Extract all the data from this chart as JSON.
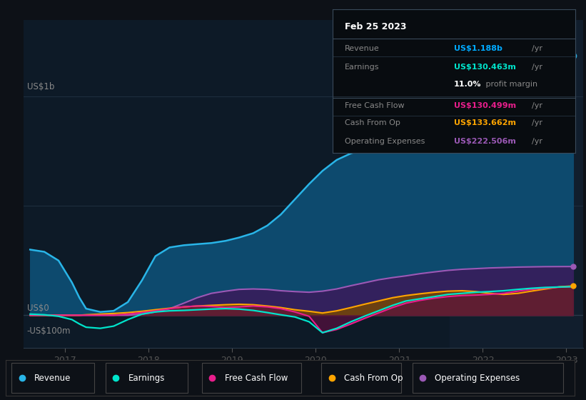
{
  "background_color": "#0d1117",
  "plot_bg_color": "#0d1a27",
  "ylim": [
    -150000000,
    1350000000
  ],
  "xlim": [
    2016.5,
    2023.2
  ],
  "x_ticks": [
    2017,
    2018,
    2019,
    2020,
    2021,
    2022,
    2023
  ],
  "y_label_1b": "US$1b",
  "y_label_0": "US$0",
  "y_label_neg": "-US$100m",
  "tooltip_date": "Feb 25 2023",
  "tooltip_rows": [
    {
      "label": "Revenue",
      "value": "US$1.188b",
      "unit": "/yr",
      "color": "#00aaff",
      "extra": null
    },
    {
      "label": "Earnings",
      "value": "US$130.463m",
      "unit": "/yr",
      "color": "#00e5cc",
      "extra": "11.0% profit margin"
    },
    {
      "label": "Free Cash Flow",
      "value": "US$130.499m",
      "unit": "/yr",
      "color": "#e91e8c",
      "extra": null
    },
    {
      "label": "Cash From Op",
      "value": "US$133.662m",
      "unit": "/yr",
      "color": "#ffa500",
      "extra": null
    },
    {
      "label": "Operating Expenses",
      "value": "US$222.506m",
      "unit": "/yr",
      "color": "#9b59b6",
      "extra": null
    }
  ],
  "legend": [
    {
      "label": "Revenue",
      "color": "#29b5e8"
    },
    {
      "label": "Earnings",
      "color": "#00e5cc"
    },
    {
      "label": "Free Cash Flow",
      "color": "#e91e8c"
    },
    {
      "label": "Cash From Op",
      "color": "#ffa500"
    },
    {
      "label": "Operating Expenses",
      "color": "#9b59b6"
    }
  ],
  "revenue_line_color": "#29b5e8",
  "revenue_fill_color": "#0d4a6e",
  "earnings_line_color": "#00e5cc",
  "fcf_line_color": "#e91e8c",
  "fcf_fill_color": "#5a1040",
  "cashop_line_color": "#ffa500",
  "cashop_fill_color": "#7a4800",
  "opex_line_color": "#9b59b6",
  "opex_fill_color": "#3a1a5a",
  "highlight_start": 2021.6,
  "highlight_color": "#111e2d",
  "series_x": [
    2016.58,
    2016.75,
    2016.92,
    2017.08,
    2017.17,
    2017.25,
    2017.42,
    2017.58,
    2017.75,
    2017.92,
    2018.08,
    2018.25,
    2018.42,
    2018.58,
    2018.75,
    2018.92,
    2019.08,
    2019.25,
    2019.42,
    2019.58,
    2019.75,
    2019.92,
    2020.08,
    2020.25,
    2020.42,
    2020.58,
    2020.75,
    2020.92,
    2021.08,
    2021.25,
    2021.42,
    2021.58,
    2021.75,
    2021.92,
    2022.08,
    2022.25,
    2022.42,
    2022.58,
    2022.75,
    2022.92,
    2023.08
  ],
  "revenue": [
    300000000,
    290000000,
    250000000,
    150000000,
    80000000,
    30000000,
    15000000,
    20000000,
    60000000,
    160000000,
    270000000,
    310000000,
    320000000,
    325000000,
    330000000,
    340000000,
    355000000,
    375000000,
    410000000,
    460000000,
    530000000,
    600000000,
    660000000,
    710000000,
    740000000,
    760000000,
    790000000,
    835000000,
    880000000,
    920000000,
    960000000,
    1000000000,
    1040000000,
    1075000000,
    1100000000,
    1120000000,
    1140000000,
    1155000000,
    1168000000,
    1180000000,
    1188000000
  ],
  "earnings": [
    5000000,
    2000000,
    -5000000,
    -20000000,
    -40000000,
    -55000000,
    -60000000,
    -50000000,
    -20000000,
    5000000,
    15000000,
    20000000,
    22000000,
    25000000,
    28000000,
    30000000,
    28000000,
    22000000,
    12000000,
    2000000,
    -8000000,
    -30000000,
    -80000000,
    -60000000,
    -30000000,
    -5000000,
    20000000,
    45000000,
    65000000,
    75000000,
    85000000,
    95000000,
    100000000,
    105000000,
    108000000,
    112000000,
    118000000,
    123000000,
    127000000,
    129000000,
    130463000
  ],
  "free_cash_flow": [
    0,
    0,
    0,
    0,
    0,
    0,
    0,
    0,
    5000000,
    12000000,
    20000000,
    30000000,
    38000000,
    42000000,
    40000000,
    35000000,
    38000000,
    42000000,
    38000000,
    30000000,
    15000000,
    -5000000,
    -80000000,
    -65000000,
    -40000000,
    -15000000,
    10000000,
    35000000,
    55000000,
    68000000,
    78000000,
    85000000,
    90000000,
    92000000,
    95000000,
    100000000,
    110000000,
    118000000,
    124000000,
    128000000,
    130499000
  ],
  "cash_from_op": [
    0,
    0,
    0,
    0,
    0,
    2000000,
    5000000,
    8000000,
    12000000,
    18000000,
    25000000,
    32000000,
    38000000,
    42000000,
    45000000,
    48000000,
    50000000,
    48000000,
    42000000,
    35000000,
    25000000,
    18000000,
    10000000,
    20000000,
    35000000,
    50000000,
    65000000,
    80000000,
    90000000,
    98000000,
    105000000,
    110000000,
    112000000,
    108000000,
    100000000,
    95000000,
    100000000,
    110000000,
    120000000,
    130000000,
    133662000
  ],
  "operating_expenses": [
    0,
    0,
    0,
    0,
    0,
    0,
    0,
    0,
    0,
    5000000,
    15000000,
    30000000,
    55000000,
    80000000,
    100000000,
    110000000,
    118000000,
    120000000,
    118000000,
    112000000,
    108000000,
    105000000,
    110000000,
    120000000,
    135000000,
    148000000,
    162000000,
    172000000,
    180000000,
    190000000,
    198000000,
    205000000,
    210000000,
    213000000,
    216000000,
    218000000,
    220000000,
    221000000,
    222000000,
    222300000,
    222506000
  ]
}
